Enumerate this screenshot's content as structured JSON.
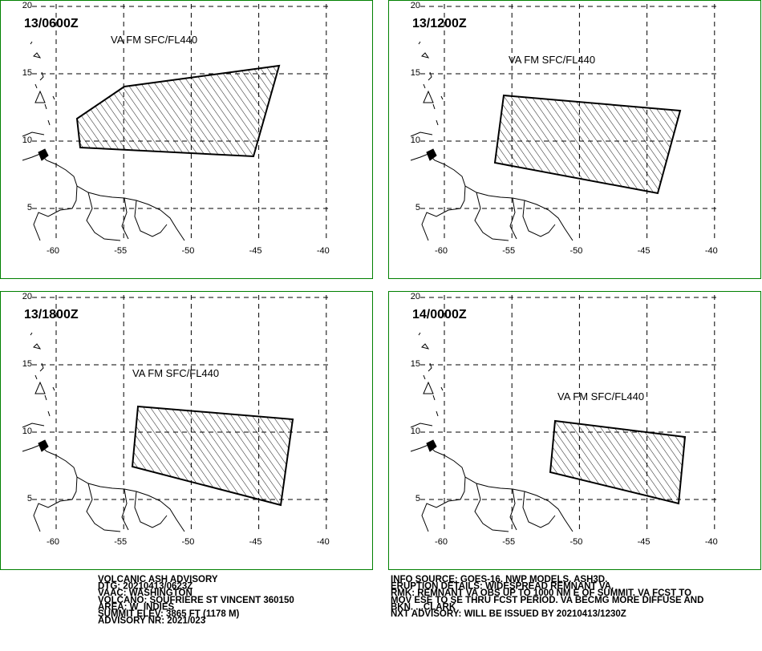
{
  "panels": [
    {
      "time": "13/0600Z",
      "label": "VA FM SFC/FL440"
    },
    {
      "time": "13/1200Z",
      "label": "VA FM SFC/FL440"
    },
    {
      "time": "13/1800Z",
      "label": "VA FM SFC/FL440"
    },
    {
      "time": "14/0000Z",
      "label": "VA FM SFC/FL440"
    }
  ],
  "lon_labels": [
    "-60",
    "-55",
    "-50",
    "-45",
    "-40"
  ],
  "lat_labels": [
    "20",
    "15",
    "10",
    "5"
  ],
  "advisory": {
    "left": [
      "VOLCANIC ASH ADVISORY",
      "DTG: 20210413/0623Z",
      "VAAC: WASHINGTON",
      "VOLCANO: SOUFRIERE ST VINCENT 360150",
      "AREA: W_INDIES",
      "SUMMIT ELEV: 3865 FT (1178 M)",
      "ADVISORY NR: 2021/023"
    ],
    "right": [
      "INFO SOURCE: GOES-16. NWP MODELS. ASH3D.",
      "ERUPTION DETAILS: WIDESPREAD REMNANT VA.",
      "RMK: REMNANT VA OBS UP TO 1000 NM E OF SUMMIT. VA FCST TO",
      "MOV ESE TO SE THRU FCST PERIOD. VA BECMG MORE DIFFUSE AND",
      "BKN. ...CLARK",
      "NXT ADVISORY: WILL BE ISSUED BY 20210413/1230Z"
    ]
  }
}
